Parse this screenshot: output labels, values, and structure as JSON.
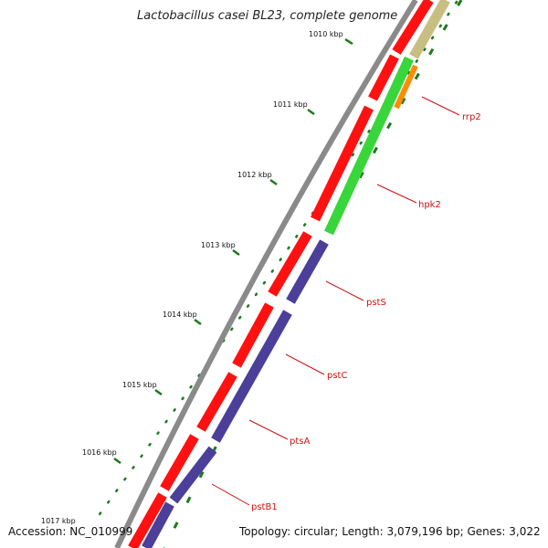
{
  "title": "Lactobacillus casei BL23, complete genome",
  "accession": "Accession: NC_010999",
  "summary": "Topology: circular; Length: 3,079,196 bp; Genes: 3,022",
  "colors": {
    "backbone": "#8a8a8a",
    "forward_cds": "#ff1111",
    "reverse_cds": "#4b3f99",
    "rrna": "#c8be82",
    "green_gene": "#38d63a",
    "orange_gene": "#ff8c00",
    "tick": "#1c7a1c",
    "label": "#cc1111"
  },
  "ticks": [
    {
      "label": "1010 kbp"
    },
    {
      "label": "1011 kbp"
    },
    {
      "label": "1012 kbp"
    },
    {
      "label": "1013 kbp"
    },
    {
      "label": "1014 kbp"
    },
    {
      "label": "1015 kbp"
    },
    {
      "label": "1016 kbp"
    },
    {
      "label": "1017 kbp"
    }
  ],
  "genes": [
    {
      "name": "rrp2"
    },
    {
      "name": "hpk2"
    },
    {
      "name": "pstS"
    },
    {
      "name": "pstC"
    },
    {
      "name": "ptsA"
    },
    {
      "name": "pstB1"
    }
  ]
}
